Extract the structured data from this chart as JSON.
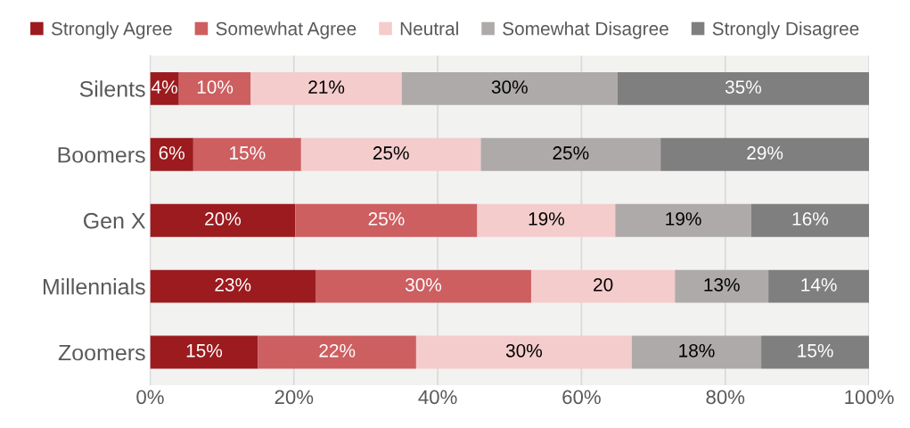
{
  "chart_data": {
    "type": "bar",
    "orientation": "horizontal",
    "stacked": true,
    "categories": [
      "Silents",
      "Boomers",
      "Gen X",
      "Millennials",
      "Zoomers"
    ],
    "series": [
      {
        "name": "Strongly Agree",
        "color": "#9b1b1f",
        "values": [
          4,
          6,
          20.2,
          23,
          15
        ],
        "value_labels": [
          "4%",
          "6%",
          "20%",
          "23%",
          "15%"
        ]
      },
      {
        "name": "Somewhat Agree",
        "color": "#cd5f61",
        "values": [
          10,
          15,
          25.3,
          30,
          22
        ],
        "value_labels": [
          "10%",
          "15%",
          "25%",
          "30%",
          "22%"
        ]
      },
      {
        "name": "Neutral",
        "color": "#f4cccc",
        "values": [
          21,
          25,
          19.2,
          20,
          30
        ],
        "value_labels": [
          "21%",
          "25%",
          "19%",
          "20",
          "30%"
        ]
      },
      {
        "name": "Somewhat Disagree",
        "color": "#aeaaaa",
        "values": [
          30,
          25,
          18.9,
          13,
          18
        ],
        "value_labels": [
          "30%",
          "25%",
          "19%",
          "13%",
          "18%"
        ]
      },
      {
        "name": "Strongly Disagree",
        "color": "#7f7f7f",
        "values": [
          35,
          29,
          16.4,
          14,
          15
        ],
        "value_labels": [
          "35%",
          "29%",
          "16%",
          "14%",
          "15%"
        ]
      }
    ],
    "xlim": [
      0,
      100
    ],
    "xticks": [
      {
        "value": 0,
        "label": "0%"
      },
      {
        "value": 20,
        "label": "20%"
      },
      {
        "value": 40,
        "label": "40%"
      },
      {
        "value": 60,
        "label": "60%"
      },
      {
        "value": 80,
        "label": "80%"
      },
      {
        "value": 100,
        "label": "100%"
      }
    ],
    "grid": "x",
    "legend": "top"
  }
}
